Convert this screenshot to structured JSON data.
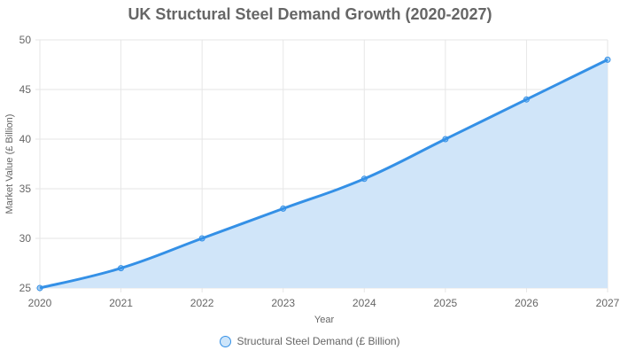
{
  "chart_data": {
    "type": "area",
    "title": "UK Structural Steel Demand Growth (2020-2027)",
    "xlabel": "Year",
    "ylabel": "Market Value (£ Billion)",
    "categories": [
      "2020",
      "2021",
      "2022",
      "2023",
      "2024",
      "2025",
      "2026",
      "2027"
    ],
    "series": [
      {
        "name": "Structural Steel Demand (£ Billion)",
        "values": [
          25,
          27,
          30,
          33,
          36,
          40,
          44,
          48
        ],
        "color": "#3490e6",
        "fill": "#d0e5f9"
      }
    ],
    "ylim": [
      25,
      50
    ],
    "yticks": [
      25,
      30,
      35,
      40,
      45,
      50
    ],
    "grid": true,
    "legend": "bottom"
  }
}
